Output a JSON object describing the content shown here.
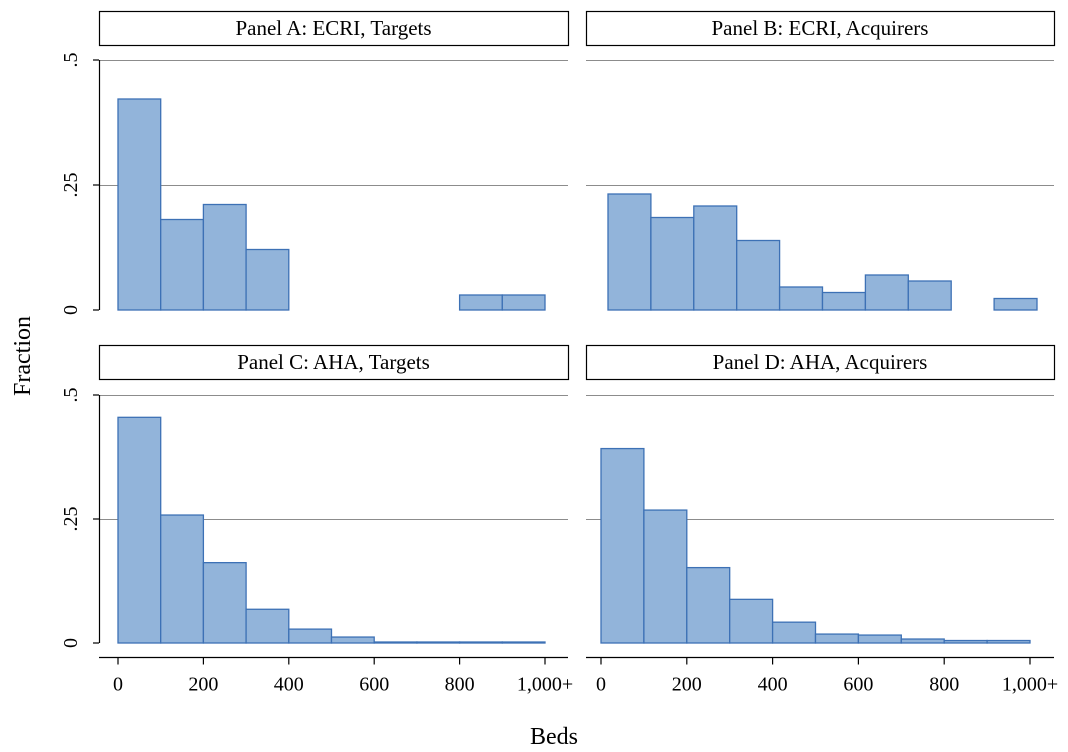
{
  "chart_data": {
    "type": "bar",
    "xlabel": "Beds",
    "ylabel": "Fraction",
    "xlim": [
      0,
      1000
    ],
    "ylim": [
      0,
      0.5
    ],
    "x_ticks": [
      {
        "value": 0,
        "label": "0"
      },
      {
        "value": 200,
        "label": "200"
      },
      {
        "value": 400,
        "label": "400"
      },
      {
        "value": 600,
        "label": "600"
      },
      {
        "value": 800,
        "label": "800"
      },
      {
        "value": 1000,
        "label": "1,000+"
      }
    ],
    "y_ticks": [
      {
        "value": 0,
        "label": "0"
      },
      {
        "value": 0.25,
        "label": ".25"
      },
      {
        "value": 0.5,
        "label": ".5"
      }
    ],
    "grid": true,
    "bar_color": "#92b4da",
    "bar_edge_color": "#3d71b5",
    "panels": [
      {
        "title": "Panel A: ECRI, Targets",
        "bins": [
          {
            "start": 0,
            "end": 100,
            "value": 0.422
          },
          {
            "start": 100,
            "end": 200,
            "value": 0.181
          },
          {
            "start": 200,
            "end": 300,
            "value": 0.211
          },
          {
            "start": 300,
            "end": 400,
            "value": 0.121
          },
          {
            "start": 800,
            "end": 900,
            "value": 0.03
          },
          {
            "start": 900,
            "end": 1000,
            "value": 0.03
          }
        ]
      },
      {
        "title": "Panel B: ECRI, Acquirers",
        "bins": [
          {
            "start": 0,
            "end": 100,
            "value": 0.232
          },
          {
            "start": 100,
            "end": 200,
            "value": 0.185
          },
          {
            "start": 200,
            "end": 300,
            "value": 0.208
          },
          {
            "start": 300,
            "end": 400,
            "value": 0.139
          },
          {
            "start": 400,
            "end": 500,
            "value": 0.046
          },
          {
            "start": 500,
            "end": 600,
            "value": 0.035
          },
          {
            "start": 600,
            "end": 700,
            "value": 0.07
          },
          {
            "start": 700,
            "end": 800,
            "value": 0.058
          },
          {
            "start": 900,
            "end": 1000,
            "value": 0.023
          }
        ]
      },
      {
        "title": "Panel C: AHA, Targets",
        "bins": [
          {
            "start": 0,
            "end": 100,
            "value": 0.455
          },
          {
            "start": 100,
            "end": 200,
            "value": 0.258
          },
          {
            "start": 200,
            "end": 300,
            "value": 0.162
          },
          {
            "start": 300,
            "end": 400,
            "value": 0.068
          },
          {
            "start": 400,
            "end": 500,
            "value": 0.028
          },
          {
            "start": 500,
            "end": 600,
            "value": 0.012
          },
          {
            "start": 600,
            "end": 700,
            "value": 0.002
          },
          {
            "start": 700,
            "end": 800,
            "value": 0.002
          },
          {
            "start": 800,
            "end": 900,
            "value": 0.002
          },
          {
            "start": 900,
            "end": 1000,
            "value": 0.002
          }
        ]
      },
      {
        "title": "Panel D: AHA, Acquirers",
        "bins": [
          {
            "start": 0,
            "end": 100,
            "value": 0.392
          },
          {
            "start": 100,
            "end": 200,
            "value": 0.268
          },
          {
            "start": 200,
            "end": 300,
            "value": 0.152
          },
          {
            "start": 300,
            "end": 400,
            "value": 0.088
          },
          {
            "start": 400,
            "end": 500,
            "value": 0.042
          },
          {
            "start": 500,
            "end": 600,
            "value": 0.018
          },
          {
            "start": 600,
            "end": 700,
            "value": 0.016
          },
          {
            "start": 700,
            "end": 800,
            "value": 0.008
          },
          {
            "start": 800,
            "end": 900,
            "value": 0.005
          },
          {
            "start": 900,
            "end": 1000,
            "value": 0.005
          }
        ]
      }
    ]
  }
}
